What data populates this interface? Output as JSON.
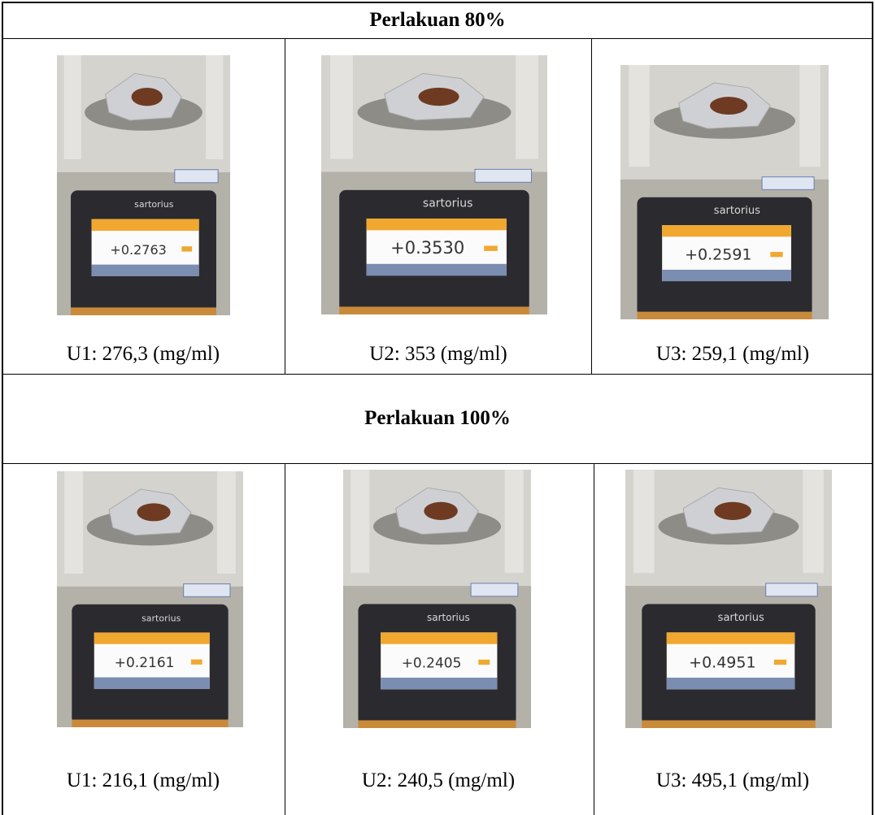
{
  "table": {
    "sections": [
      {
        "title": "Perlakuan 80%",
        "cells": [
          {
            "photo": {
              "brand": "sartorius",
              "reading": "+0.2763"
            },
            "caption": "U1: 276,3 (mg/ml)"
          },
          {
            "photo": {
              "brand": "sartorius",
              "reading": "+0.3530"
            },
            "caption": "U2: 353 (mg/ml)"
          },
          {
            "photo": {
              "brand": "sartorius",
              "reading": "+0.2591"
            },
            "caption": "U3: 259,1 (mg/ml)"
          }
        ]
      },
      {
        "title": "Perlakuan 100%",
        "cells": [
          {
            "photo": {
              "brand": "sartorius",
              "reading": "+0.2161"
            },
            "caption": "U1: 216,1 (mg/ml)"
          },
          {
            "photo": {
              "brand": "sartorius",
              "reading": "+0.2405"
            },
            "caption": "U2: 240,5 (mg/ml)"
          },
          {
            "photo": {
              "brand": "sartorius",
              "reading": "+0.4951"
            },
            "caption": "U3: 495,1 (mg/ml)"
          }
        ]
      }
    ]
  }
}
